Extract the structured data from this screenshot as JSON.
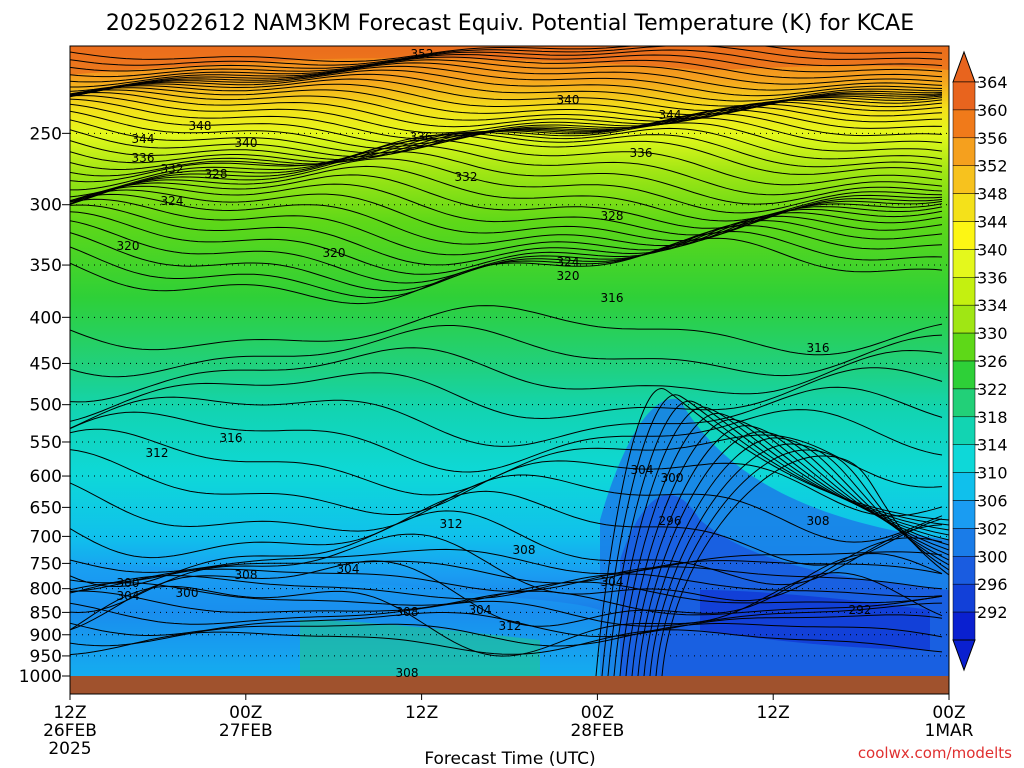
{
  "title": "2025022612 NAM3KM Forecast Equiv. Potential Temperature (K) for KCAE",
  "credit": "coolwx.com/modelts",
  "chart_data": {
    "type": "heatmap",
    "title": "2025022612 NAM3KM Forecast Equiv. Potential Temperature (K) for KCAE",
    "xlabel": "Forecast Time (UTC)",
    "ylabel": "",
    "y_scale": "log",
    "y_ticks": [
      250,
      300,
      350,
      400,
      450,
      500,
      550,
      600,
      650,
      700,
      750,
      800,
      850,
      900,
      950,
      1000
    ],
    "y_range_hpa": [
      1000,
      200
    ],
    "x_ticks": [
      {
        "lines": [
          "12Z",
          "26FEB",
          "2025"
        ]
      },
      {
        "lines": [
          "00Z",
          "27FEB"
        ]
      },
      {
        "lines": [
          "12Z"
        ]
      },
      {
        "lines": [
          "00Z",
          "28FEB"
        ]
      },
      {
        "lines": [
          "12Z"
        ]
      },
      {
        "lines": [
          "00Z",
          "1MAR"
        ]
      }
    ],
    "x_range_hours": [
      0,
      60
    ],
    "colorbar": {
      "labels": [
        364,
        360,
        356,
        352,
        348,
        344,
        340,
        336,
        334,
        330,
        326,
        322,
        318,
        314,
        310,
        306,
        302,
        300,
        296,
        292
      ],
      "colors": [
        "#e8641e",
        "#f07a1a",
        "#f5a01e",
        "#f7c21e",
        "#f4e11a",
        "#fdf614",
        "#e4f81c",
        "#c4f010",
        "#a0e614",
        "#5ed818",
        "#2ed038",
        "#22d078",
        "#12d4b2",
        "#0ed8d8",
        "#10c0ec",
        "#1a9cf2",
        "#1a7ce8",
        "#1a5ce0",
        "#1240d8",
        "#0a20d0"
      ]
    },
    "grid": true,
    "series": [
      {
        "x": [
          0,
          6,
          12,
          18,
          24,
          30,
          36,
          42,
          48,
          54,
          60
        ],
        "pressure_hpa": [
          1000,
          950,
          900,
          850,
          800,
          750,
          700,
          650,
          600,
          550,
          500,
          450,
          400,
          350,
          300,
          250,
          200
        ],
        "values_at_hour": {
          "0": [
            304,
            306,
            304,
            302,
            300,
            306,
            310,
            312,
            313,
            315,
            316,
            317,
            318,
            320,
            325,
            343,
            352
          ],
          "12": [
            308,
            306,
            306,
            304,
            304,
            308,
            311,
            312,
            314,
            316,
            317,
            318,
            319,
            321,
            328,
            338,
            350
          ],
          "24": [
            308,
            310,
            312,
            310,
            308,
            308,
            310,
            312,
            313,
            315,
            316,
            317,
            318,
            320,
            330,
            336,
            346
          ],
          "36": [
            306,
            302,
            298,
            300,
            300,
            302,
            304,
            306,
            308,
            312,
            314,
            315,
            316,
            320,
            332,
            338,
            350
          ],
          "48": [
            300,
            296,
            293,
            294,
            298,
            302,
            306,
            308,
            310,
            312,
            314,
            315,
            316,
            320,
            330,
            336,
            350
          ],
          "60": [
            298,
            296,
            294,
            296,
            300,
            304,
            307,
            309,
            311,
            313,
            314,
            315,
            316,
            320,
            330,
            336,
            350
          ]
        }
      }
    ],
    "contour_labels": [
      "352",
      "340",
      "344",
      "348",
      "340",
      "344",
      "336",
      "336",
      "336",
      "332",
      "328",
      "332",
      "324",
      "328",
      "320",
      "320",
      "324",
      "320",
      "316",
      "316",
      "316",
      "312",
      "304",
      "300",
      "296",
      "308",
      "312",
      "308",
      "304",
      "308",
      "300",
      "304",
      "300",
      "312",
      "308",
      "304",
      "292",
      "304",
      "308"
    ]
  }
}
